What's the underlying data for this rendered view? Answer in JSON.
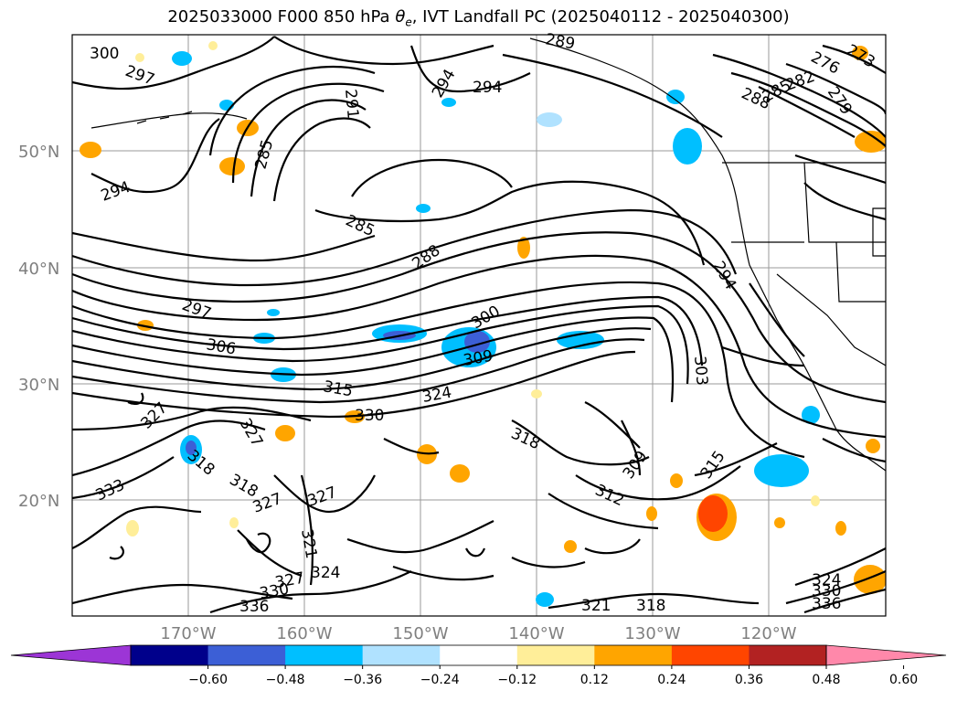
{
  "title": {
    "prefix": "2025033000 F000 850 hPa ",
    "theta_symbol": "θ",
    "theta_sub": "e",
    "suffix": ", IVT Landfall PC (2025040112 - 2025040300)"
  },
  "map": {
    "lat_labels": [
      "50°N",
      "40°N",
      "30°N",
      "20°N"
    ],
    "lon_labels": [
      "170°W",
      "160°W",
      "150°W",
      "140°W",
      "130°W",
      "120°W"
    ],
    "contour_labels": [
      "300",
      "297",
      "294",
      "285",
      "291",
      "294",
      "294",
      "289",
      "276",
      "273",
      "282",
      "279",
      "288",
      "285",
      "285",
      "288",
      "297",
      "306",
      "300",
      "309",
      "315",
      "324",
      "330",
      "327",
      "327",
      "318",
      "318",
      "309",
      "315",
      "303",
      "294",
      "333",
      "318",
      "327",
      "327",
      "321",
      "324",
      "327",
      "330",
      "336",
      "312",
      "321",
      "318",
      "336",
      "330",
      "324"
    ]
  },
  "colorbar": {
    "ticks": [
      "−0.60",
      "−0.48",
      "−0.36",
      "−0.24",
      "−0.12",
      "0.12",
      "0.24",
      "0.36",
      "0.48",
      "0.60"
    ],
    "colors": [
      "#9c35d6",
      "#00008b",
      "#3c5fd6",
      "#00bfff",
      "#b0e2ff",
      "#ffffff",
      "#ffee99",
      "#ffa500",
      "#ff4500",
      "#b22222",
      "#ff88aa"
    ]
  }
}
